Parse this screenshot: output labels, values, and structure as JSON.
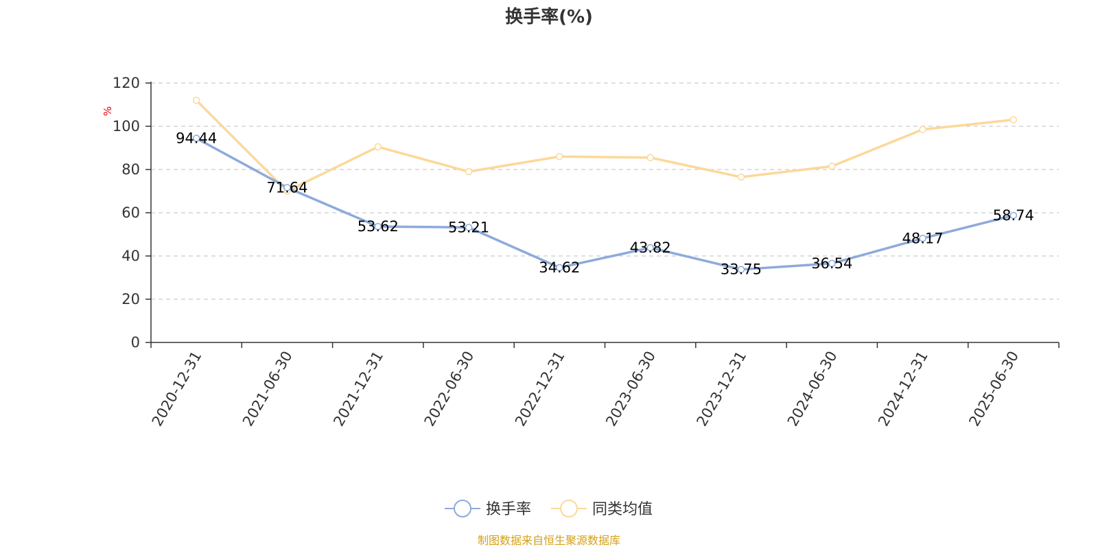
{
  "chart_data": {
    "type": "line",
    "title": "换手率(%)",
    "ylabel": "%",
    "ylim": [
      0,
      120
    ],
    "yticks": [
      0,
      20,
      40,
      60,
      80,
      100,
      120
    ],
    "categories": [
      "2020-12-31",
      "2021-06-30",
      "2021-12-31",
      "2022-06-30",
      "2022-12-31",
      "2023-06-30",
      "2023-12-31",
      "2024-06-30",
      "2024-12-31",
      "2025-06-30"
    ],
    "series": [
      {
        "name": "换手率",
        "color": "#8eaadb",
        "values": [
          94.44,
          71.64,
          53.62,
          53.21,
          34.62,
          43.82,
          33.75,
          36.54,
          48.17,
          58.74
        ],
        "labels": [
          "94.44",
          "71.64",
          "53.62",
          "53.21",
          "34.62",
          "43.82",
          "33.75",
          "36.54",
          "48.17",
          "58.74"
        ]
      },
      {
        "name": "同类均值",
        "color": "#fcd898",
        "values": [
          112,
          70,
          90.5,
          79,
          86,
          85.5,
          76.5,
          81.5,
          98.5,
          103
        ]
      }
    ],
    "grid": true,
    "legend_position": "bottom"
  },
  "colors": {
    "axis": "#333333",
    "grid": "#cccccc",
    "unit": "#e60000",
    "source": "#d4a017"
  },
  "footer": {
    "source": "制图数据来自恒生聚源数据库"
  }
}
